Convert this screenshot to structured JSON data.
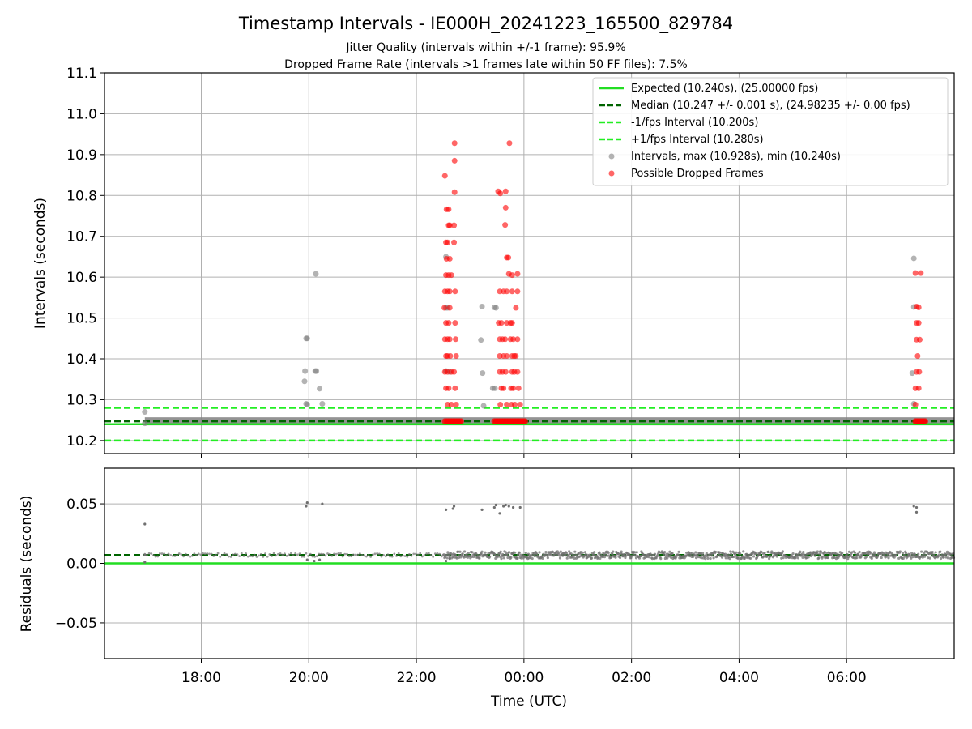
{
  "chart_data": [
    {
      "type": "scatter",
      "title": "Timestamp Intervals - IE000H_20241223_165500_829784",
      "subtitle_lines": [
        "Jitter Quality (intervals within +/-1 frame): 95.9%",
        "Dropped Frame Rate (intervals >1 frames late within 50 FF files): 7.5%"
      ],
      "xlabel": "",
      "ylabel": "Intervals (seconds)",
      "x_time_range_hours": [
        16.2,
        32.0
      ],
      "ylim": [
        10.168,
        11.1
      ],
      "yticks": [
        10.2,
        10.3,
        10.4,
        10.5,
        10.6,
        10.7,
        10.8,
        10.9,
        11.0,
        11.1
      ],
      "ytick_labels": [
        "10.2",
        "10.3",
        "10.4",
        "10.5",
        "10.6",
        "10.7",
        "10.8",
        "10.9",
        "11.0",
        "11.1"
      ],
      "grid": "y-axis",
      "legend_position": "top-right",
      "legend": [
        "Expected (10.240s), (25.00000 fps)",
        "Median (10.247 +/- 0.001 s), (24.98235 +/- 0.00 fps)",
        "-1/fps Interval (10.200s)",
        "+1/fps Interval (10.280s)",
        "Intervals, max (10.928s), min (10.240s)",
        "Possible Dropped Frames"
      ],
      "reference_lines": [
        {
          "name": "Expected",
          "y": 10.24,
          "color": "#22dd22",
          "style": "solid"
        },
        {
          "name": "Median",
          "y": 10.247,
          "color": "#006400",
          "style": "dashed"
        },
        {
          "name": "-1/fps Interval",
          "y": 10.2,
          "color": "#22ee22",
          "style": "dashed"
        },
        {
          "name": "+1/fps Interval",
          "y": 10.28,
          "color": "#22ee22",
          "style": "dashed"
        }
      ],
      "baseline_band": {
        "x_range_hours": [
          16.95,
          32.0
        ],
        "y": 10.247,
        "color": "#808080"
      },
      "series": [
        {
          "name": "Intervals",
          "color": "#808080",
          "points": [
            [
              16.95,
              10.27
            ],
            [
              16.95,
              10.242
            ],
            [
              19.95,
              10.45
            ],
            [
              19.97,
              10.45
            ],
            [
              19.93,
              10.37
            ],
            [
              19.92,
              10.345
            ],
            [
              19.95,
              10.29
            ],
            [
              19.97,
              10.288
            ],
            [
              20.13,
              10.608
            ],
            [
              20.12,
              10.37
            ],
            [
              20.14,
              10.37
            ],
            [
              20.2,
              10.327
            ],
            [
              20.25,
              10.29
            ],
            [
              22.55,
              10.65
            ],
            [
              22.55,
              10.525
            ],
            [
              22.58,
              10.525
            ],
            [
              22.55,
              10.37
            ],
            [
              22.62,
              10.368
            ],
            [
              23.22,
              10.528
            ],
            [
              23.2,
              10.446
            ],
            [
              23.23,
              10.365
            ],
            [
              23.25,
              10.285
            ],
            [
              23.42,
              10.328
            ],
            [
              23.45,
              10.526
            ],
            [
              23.48,
              10.525
            ],
            [
              23.46,
              10.328
            ],
            [
              31.25,
              10.646
            ],
            [
              31.25,
              10.527
            ],
            [
              31.22,
              10.365
            ],
            [
              31.25,
              10.29
            ]
          ]
        },
        {
          "name": "Possible Dropped Frames",
          "color": "#ff0000",
          "points": [
            [
              22.53,
              10.848
            ],
            [
              22.56,
              10.766
            ],
            [
              22.6,
              10.766
            ],
            [
              22.62,
              10.727
            ],
            [
              22.58,
              10.685
            ],
            [
              22.55,
              10.605
            ],
            [
              22.53,
              10.565
            ],
            [
              22.58,
              10.565
            ],
            [
              22.62,
              10.565
            ],
            [
              22.52,
              10.525
            ],
            [
              22.62,
              10.525
            ],
            [
              22.55,
              10.488
            ],
            [
              22.6,
              10.488
            ],
            [
              22.53,
              10.448
            ],
            [
              22.58,
              10.448
            ],
            [
              22.62,
              10.448
            ],
            [
              22.55,
              10.407
            ],
            [
              22.58,
              10.407
            ],
            [
              22.63,
              10.407
            ],
            [
              22.53,
              10.368
            ],
            [
              22.58,
              10.368
            ],
            [
              22.65,
              10.368
            ],
            [
              22.55,
              10.328
            ],
            [
              22.6,
              10.328
            ],
            [
              22.58,
              10.288
            ],
            [
              22.65,
              10.288
            ],
            [
              22.56,
              10.645
            ],
            [
              22.62,
              10.645
            ],
            [
              22.6,
              10.605
            ],
            [
              22.65,
              10.605
            ],
            [
              22.55,
              10.685
            ],
            [
              22.6,
              10.727
            ],
            [
              22.71,
              10.928
            ],
            [
              22.71,
              10.885
            ],
            [
              22.71,
              10.808
            ],
            [
              22.7,
              10.727
            ],
            [
              22.7,
              10.685
            ],
            [
              22.72,
              10.565
            ],
            [
              22.72,
              10.488
            ],
            [
              22.73,
              10.448
            ],
            [
              22.74,
              10.407
            ],
            [
              22.7,
              10.368
            ],
            [
              22.72,
              10.328
            ],
            [
              22.74,
              10.288
            ],
            [
              23.52,
              10.81
            ],
            [
              23.56,
              10.805
            ],
            [
              23.66,
              10.81
            ],
            [
              23.66,
              10.77
            ],
            [
              23.65,
              10.728
            ],
            [
              23.68,
              10.648
            ],
            [
              23.71,
              10.648
            ],
            [
              23.72,
              10.608
            ],
            [
              23.55,
              10.565
            ],
            [
              23.62,
              10.565
            ],
            [
              23.68,
              10.565
            ],
            [
              23.53,
              10.488
            ],
            [
              23.58,
              10.488
            ],
            [
              23.68,
              10.488
            ],
            [
              23.55,
              10.448
            ],
            [
              23.6,
              10.448
            ],
            [
              23.65,
              10.448
            ],
            [
              23.55,
              10.407
            ],
            [
              23.62,
              10.407
            ],
            [
              23.68,
              10.407
            ],
            [
              23.55,
              10.368
            ],
            [
              23.6,
              10.368
            ],
            [
              23.66,
              10.368
            ],
            [
              23.58,
              10.328
            ],
            [
              23.62,
              10.328
            ],
            [
              23.68,
              10.288
            ],
            [
              23.56,
              10.288
            ],
            [
              23.73,
              10.928
            ],
            [
              23.78,
              10.605
            ],
            [
              23.78,
              10.565
            ],
            [
              23.75,
              10.488
            ],
            [
              23.78,
              10.488
            ],
            [
              23.75,
              10.448
            ],
            [
              23.8,
              10.448
            ],
            [
              23.78,
              10.407
            ],
            [
              23.82,
              10.407
            ],
            [
              23.78,
              10.368
            ],
            [
              23.82,
              10.368
            ],
            [
              23.76,
              10.328
            ],
            [
              23.8,
              10.328
            ],
            [
              23.77,
              10.288
            ],
            [
              23.83,
              10.288
            ],
            [
              23.88,
              10.608
            ],
            [
              23.88,
              10.565
            ],
            [
              23.85,
              10.525
            ],
            [
              23.88,
              10.448
            ],
            [
              23.85,
              10.407
            ],
            [
              23.88,
              10.368
            ],
            [
              23.9,
              10.328
            ],
            [
              23.93,
              10.288
            ],
            [
              31.28,
              10.61
            ],
            [
              31.38,
              10.61
            ],
            [
              31.3,
              10.528
            ],
            [
              31.34,
              10.526
            ],
            [
              31.3,
              10.488
            ],
            [
              31.34,
              10.488
            ],
            [
              31.3,
              10.447
            ],
            [
              31.36,
              10.447
            ],
            [
              31.32,
              10.407
            ],
            [
              31.3,
              10.368
            ],
            [
              31.35,
              10.368
            ],
            [
              31.28,
              10.328
            ],
            [
              31.34,
              10.328
            ],
            [
              31.28,
              10.288
            ]
          ]
        },
        {
          "name": "Possible Dropped Frames (baseline)",
          "color": "#ff0000",
          "x_ranges_hours": [
            [
              22.53,
              22.85
            ],
            [
              23.45,
              24.05
            ],
            [
              31.28,
              31.48
            ]
          ],
          "y": 10.247
        }
      ]
    },
    {
      "type": "scatter",
      "xlabel": "Time (UTC)",
      "ylabel": "Residuals (seconds)",
      "x_time_range_hours": [
        16.2,
        32.0
      ],
      "xticks_hours": [
        18,
        20,
        22,
        24,
        26,
        28,
        30
      ],
      "xtick_labels": [
        "18:00",
        "20:00",
        "22:00",
        "00:00",
        "02:00",
        "04:00",
        "06:00"
      ],
      "ylim": [
        -0.08,
        0.08
      ],
      "yticks": [
        -0.05,
        0.0,
        0.05
      ],
      "ytick_labels": [
        "−0.05",
        "0.00",
        "0.05"
      ],
      "grid": "both",
      "reference_lines": [
        {
          "name": "Zero residual",
          "y": 0.0,
          "color": "#22dd22",
          "style": "solid"
        },
        {
          "name": "Median residual",
          "y": 0.007,
          "color": "#006400",
          "style": "dashed"
        }
      ],
      "series": [
        {
          "name": "Residuals",
          "color": "#707070",
          "points": [
            [
              16.95,
              0.033
            ],
            [
              16.95,
              0.001
            ],
            [
              16.95,
              0.007
            ],
            [
              19.95,
              0.048
            ],
            [
              19.97,
              0.051
            ],
            [
              20.25,
              0.05
            ],
            [
              19.97,
              0.003
            ],
            [
              20.1,
              0.002
            ],
            [
              20.2,
              0.003
            ],
            [
              22.55,
              0.045
            ],
            [
              22.68,
              0.046
            ],
            [
              22.7,
              0.048
            ],
            [
              22.55,
              0.002
            ],
            [
              22.62,
              0.004
            ],
            [
              23.22,
              0.045
            ],
            [
              23.45,
              0.047
            ],
            [
              23.48,
              0.049
            ],
            [
              23.55,
              0.042
            ],
            [
              23.62,
              0.048
            ],
            [
              23.66,
              0.049
            ],
            [
              23.72,
              0.048
            ],
            [
              23.8,
              0.047
            ],
            [
              23.93,
              0.047
            ],
            [
              31.25,
              0.048
            ],
            [
              31.3,
              0.047
            ],
            [
              31.3,
              0.043
            ]
          ],
          "band": {
            "dense_x_range_hours": [
              22.5,
              32.0
            ],
            "sparse_x_range_hours": [
              16.95,
              22.5
            ],
            "y_center": 0.007,
            "y_spread": 0.003
          }
        }
      ]
    }
  ]
}
